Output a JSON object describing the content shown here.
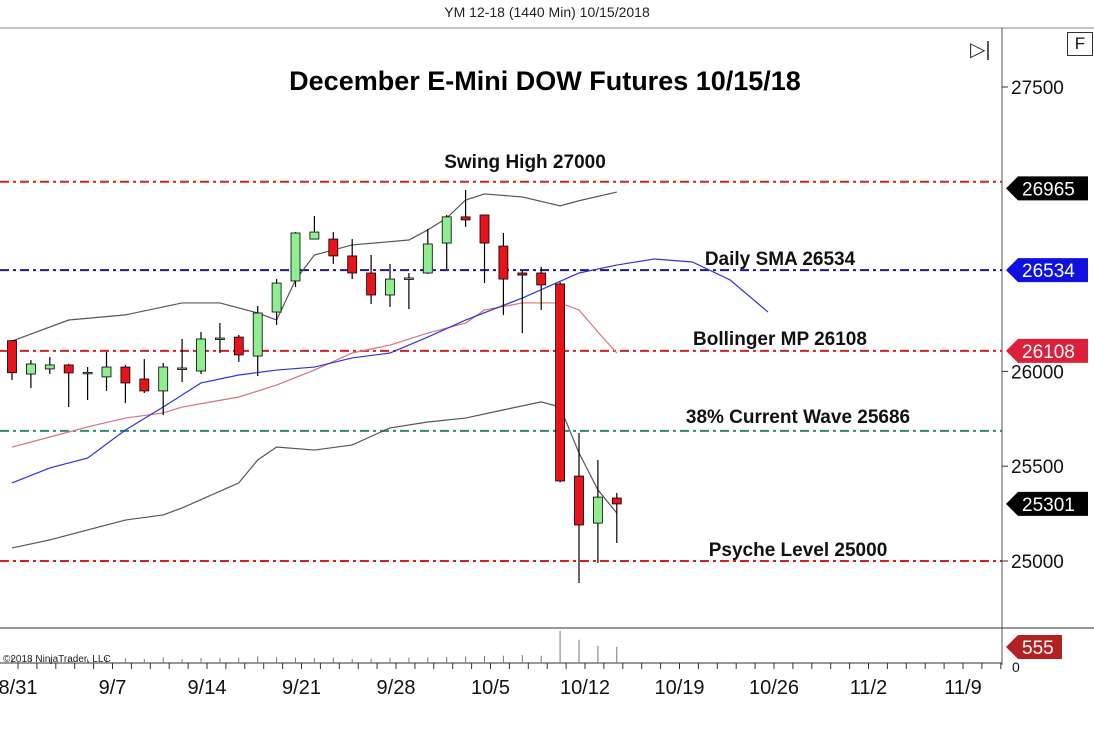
{
  "header": {
    "instrument_title": "YM 12-18 (1440 Min)  10/15/2018",
    "f_button": "F",
    "play_end_icon": "skip-to-end-icon"
  },
  "copyright": "©2018 NinjaTrader, LLC",
  "colors": {
    "up": "#90ee90",
    "down": "#e8141c",
    "upper_lower_band": "#555555",
    "middle_band": "#d9707a",
    "sma": "#2b35d8"
  },
  "chart_data": {
    "type": "candlestick",
    "title": "December E-Mini DOW Futures 10/15/18",
    "ylim": [
      24550,
      27900
    ],
    "y_ticks": [
      25000,
      25500,
      26000,
      27500
    ],
    "x_tick_labels": [
      "8/31",
      "9/7",
      "9/14",
      "9/21",
      "9/28",
      "10/5",
      "10/12",
      "10/19",
      "10/26",
      "11/2",
      "11/9"
    ],
    "candles_ohlc": [
      [
        26162,
        26165,
        25955,
        25993
      ],
      [
        25986,
        26060,
        25912,
        26039
      ],
      [
        26013,
        26076,
        25986,
        26034
      ],
      [
        26034,
        26040,
        25812,
        25992
      ],
      [
        25992,
        26023,
        25849,
        25995
      ],
      [
        25971,
        26102,
        25897,
        26023
      ],
      [
        26023,
        26034,
        25833,
        25939
      ],
      [
        25960,
        26065,
        25886,
        25897
      ],
      [
        25897,
        26044,
        25770,
        26023
      ],
      [
        26015,
        26171,
        25944,
        26018
      ],
      [
        26002,
        26208,
        25986,
        26171
      ],
      [
        26176,
        26255,
        26097,
        26176
      ],
      [
        26181,
        26192,
        26050,
        26087
      ],
      [
        26081,
        26345,
        25976,
        26308
      ],
      [
        26313,
        26487,
        26245,
        26466
      ],
      [
        26477,
        26735,
        26445,
        26730
      ],
      [
        26698,
        26820,
        26698,
        26735
      ],
      [
        26698,
        26735,
        26567,
        26609
      ],
      [
        26609,
        26698,
        26487,
        26519
      ],
      [
        26519,
        26614,
        26356,
        26403
      ],
      [
        26403,
        26567,
        26340,
        26487
      ],
      [
        26493,
        26519,
        26329,
        26493
      ],
      [
        26519,
        26751,
        26514,
        26672
      ],
      [
        26677,
        26825,
        26540,
        26815
      ],
      [
        26815,
        26957,
        26762,
        26799
      ],
      [
        26825,
        26825,
        26466,
        26677
      ],
      [
        26661,
        26730,
        26297,
        26487
      ],
      [
        26519,
        26535,
        26202,
        26508
      ],
      [
        26519,
        26551,
        26324,
        26456
      ],
      [
        26461,
        26471,
        25415,
        25422
      ],
      [
        25448,
        25675,
        24884,
        25190
      ],
      [
        25200,
        25533,
        24990,
        25337
      ],
      [
        25332,
        25359,
        25095,
        25301
      ]
    ],
    "volume": [
      210,
      180,
      170,
      160,
      150,
      190,
      170,
      140,
      200,
      130,
      170,
      160,
      180,
      230,
      200,
      190,
      170,
      190,
      140,
      150,
      180,
      190,
      200,
      210,
      230,
      240,
      250,
      270,
      250,
      1100,
      800,
      590,
      555
    ],
    "bollinger_upper": [
      [
        0,
        26160
      ],
      [
        3,
        26271
      ],
      [
        6,
        26298
      ],
      [
        9,
        26361
      ],
      [
        11,
        26361
      ],
      [
        13,
        26308
      ],
      [
        14,
        26271
      ],
      [
        15,
        26482
      ],
      [
        16,
        26614
      ],
      [
        18,
        26667
      ],
      [
        21,
        26693
      ],
      [
        22,
        26746
      ],
      [
        23,
        26809
      ],
      [
        24,
        26904
      ],
      [
        25,
        26936
      ],
      [
        27,
        26920
      ],
      [
        29,
        26873
      ],
      [
        30,
        26900
      ],
      [
        32,
        26946
      ]
    ],
    "bollinger_middle": [
      [
        0,
        25601
      ],
      [
        2,
        25654
      ],
      [
        4,
        25707
      ],
      [
        6,
        25754
      ],
      [
        8,
        25781
      ],
      [
        9,
        25812
      ],
      [
        12,
        25865
      ],
      [
        14,
        25928
      ],
      [
        16,
        26007
      ],
      [
        18,
        26097
      ],
      [
        20,
        26139
      ],
      [
        22,
        26202
      ],
      [
        24,
        26255
      ],
      [
        25,
        26324
      ],
      [
        27,
        26361
      ],
      [
        29,
        26361
      ],
      [
        30,
        26324
      ],
      [
        31,
        26208
      ],
      [
        32,
        26097
      ]
    ],
    "bollinger_lower": [
      [
        0,
        25069
      ],
      [
        2,
        25111
      ],
      [
        4,
        25164
      ],
      [
        6,
        25216
      ],
      [
        8,
        25243
      ],
      [
        9,
        25280
      ],
      [
        12,
        25412
      ],
      [
        13,
        25533
      ],
      [
        14,
        25601
      ],
      [
        16,
        25585
      ],
      [
        18,
        25612
      ],
      [
        20,
        25702
      ],
      [
        22,
        25733
      ],
      [
        24,
        25754
      ],
      [
        26,
        25797
      ],
      [
        28,
        25839
      ],
      [
        29,
        25812
      ],
      [
        30,
        25570
      ],
      [
        31,
        25375
      ],
      [
        32,
        25253
      ]
    ],
    "sma": [
      [
        0,
        25412
      ],
      [
        2,
        25491
      ],
      [
        4,
        25543
      ],
      [
        6,
        25691
      ],
      [
        8,
        25812
      ],
      [
        10,
        25939
      ],
      [
        12,
        25981
      ],
      [
        14,
        26007
      ],
      [
        16,
        26023
      ],
      [
        18,
        26071
      ],
      [
        20,
        26097
      ],
      [
        22,
        26181
      ],
      [
        24,
        26271
      ],
      [
        27,
        26387
      ],
      [
        30,
        26519
      ],
      [
        32,
        26561
      ],
      [
        34,
        26593
      ],
      [
        36,
        26577
      ],
      [
        38,
        26482
      ],
      [
        40,
        26313
      ]
    ],
    "levels": [
      {
        "value": 27000,
        "label": "Swing High 27000",
        "color": "#d42020"
      },
      {
        "value": 26534,
        "label": "Daily SMA 26534",
        "color": "#1a1a8c"
      },
      {
        "value": 26108,
        "label": "Bollinger MP 26108",
        "color": "#d42020"
      },
      {
        "value": 25686,
        "label": "38% Current Wave 25686",
        "color": "#2e8b6e"
      },
      {
        "value": 25000,
        "label": "Psyche Level 25000",
        "color": "#d42020"
      }
    ],
    "price_tags": [
      {
        "value": 26965,
        "text": "26965",
        "color": "#000000"
      },
      {
        "value": 26534,
        "text": "26534",
        "color": "#1010e0"
      },
      {
        "value": 26108,
        "text": "26108",
        "color": "#dc1f3a"
      },
      {
        "value": 25301,
        "text": "25301",
        "color": "#000000"
      }
    ],
    "volume_tag": {
      "text": "555",
      "color": "#b22222"
    },
    "volume_axis_zero": "0"
  }
}
